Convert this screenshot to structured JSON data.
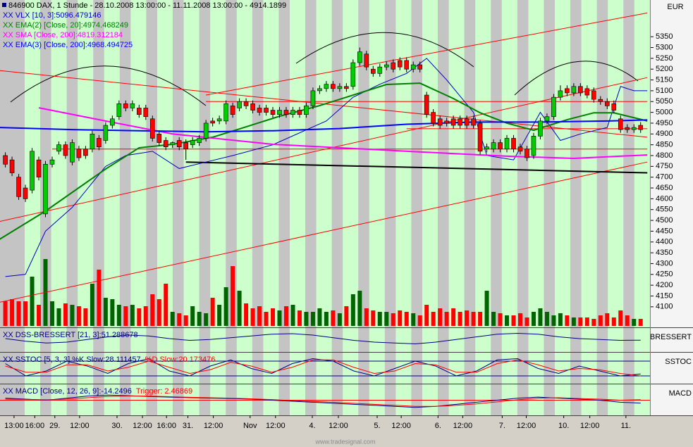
{
  "chart_data": {
    "type": "candlestick",
    "title": "846900 DAX, 1 Stunde - 28.10.2008 13:00:00 - 11.11.2008 13:00:00 - 4914.1899",
    "currency": "EUR",
    "footer": "www.tradesignal.com",
    "xlim": [
      -0.8,
      96.4
    ],
    "ylim": [
      4005,
      5520
    ],
    "yticks": [
      4100,
      4150,
      4200,
      4250,
      4300,
      4350,
      4400,
      4450,
      4500,
      4550,
      4600,
      4650,
      4700,
      4750,
      4800,
      4850,
      4900,
      4950,
      5000,
      5050,
      5100,
      5150,
      5200,
      5250,
      5300,
      5350
    ],
    "xticks": [
      {
        "value": 1.3,
        "label": "13:00"
      },
      {
        "value": 4.4,
        "label": "16:00"
      },
      {
        "value": 7.4,
        "label": "29."
      },
      {
        "value": 11.1,
        "label": "12:00"
      },
      {
        "value": 16.7,
        "label": "30."
      },
      {
        "value": 20.5,
        "label": "12:00"
      },
      {
        "value": 24.1,
        "label": "16:00"
      },
      {
        "value": 27.3,
        "label": "31."
      },
      {
        "value": 31.1,
        "label": "12:00"
      },
      {
        "value": 36.6,
        "label": "Nov"
      },
      {
        "value": 40.4,
        "label": "12:00"
      },
      {
        "value": 45.9,
        "label": "4."
      },
      {
        "value": 49.8,
        "label": "12:00"
      },
      {
        "value": 55.6,
        "label": "5."
      },
      {
        "value": 59.2,
        "label": "12:00"
      },
      {
        "value": 64.7,
        "label": "6."
      },
      {
        "value": 68.4,
        "label": "12:00"
      },
      {
        "value": 74.3,
        "label": "7."
      },
      {
        "value": 77.9,
        "label": "12:00"
      },
      {
        "value": 83.5,
        "label": "10."
      },
      {
        "value": 87.4,
        "label": "12:00"
      },
      {
        "value": 92.8,
        "label": "11."
      }
    ],
    "up_color": "#00cc00",
    "down_color": "#ff0000",
    "open": [
      4800,
      4780,
      4700,
      4650,
      4640,
      4780,
      4530,
      4760,
      4820,
      4850,
      4770,
      4830,
      4830,
      4830,
      4880,
      4870,
      4940,
      4980,
      5040,
      5020,
      5020,
      5020,
      4970,
      4900,
      4870,
      4850,
      4870,
      4860,
      4850,
      4860,
      4880,
      4960,
      4960,
      4960,
      5030,
      5020,
      5050,
      5040,
      5020,
      5020,
      5010,
      4990,
      5010,
      4990,
      5010,
      4990,
      5030,
      5100,
      5110,
      5130,
      5110,
      5120,
      5120,
      5230,
      5270,
      5200,
      5180,
      5210,
      5230,
      5240,
      5240,
      5200,
      5220,
      5080,
      5000,
      4970,
      4960,
      4970,
      4970,
      4970,
      4970,
      4950,
      4830,
      4830,
      4860,
      4830,
      4880,
      4840,
      4830,
      4800,
      4890,
      4960,
      4980,
      5070,
      5110,
      5090,
      5120,
      5110,
      5100,
      5060,
      5050,
      5040,
      4970,
      4930,
      4920,
      4940
    ],
    "close": [
      4760,
      4720,
      4610,
      4600,
      4820,
      4700,
      4760,
      4780,
      4850,
      4800,
      4860,
      4790,
      4800,
      4900,
      4840,
      4940,
      4970,
      5040,
      5020,
      5040,
      4990,
      4980,
      4880,
      4860,
      4840,
      4860,
      4840,
      4830,
      4870,
      4880,
      4950,
      4950,
      4970,
      5040,
      4990,
      5050,
      5030,
      5010,
      5000,
      5000,
      4990,
      5010,
      4990,
      5010,
      4990,
      5030,
      5100,
      5110,
      5130,
      5110,
      5120,
      5110,
      5230,
      5280,
      5210,
      5180,
      5210,
      5220,
      5200,
      5210,
      5200,
      5220,
      5200,
      4990,
      4950,
      4940,
      4950,
      4940,
      4940,
      4940,
      4940,
      4820,
      4840,
      4860,
      4830,
      4880,
      4830,
      4820,
      4790,
      4890,
      4960,
      4980,
      5070,
      5100,
      5090,
      5120,
      5090,
      5080,
      5060,
      5050,
      5030,
      5010,
      4920,
      4920,
      4930,
      4920
    ],
    "high": [
      4815,
      4795,
      4715,
      4665,
      4835,
      4795,
      4775,
      4795,
      4865,
      4865,
      4875,
      4845,
      4845,
      4915,
      4895,
      4955,
      4985,
      5055,
      5055,
      5055,
      5035,
      5035,
      4985,
      4915,
      4885,
      4865,
      4885,
      4875,
      4885,
      4895,
      4965,
      4975,
      4985,
      5055,
      5045,
      5065,
      5065,
      5055,
      5035,
      5035,
      5025,
      5025,
      5025,
      5025,
      5025,
      5045,
      5115,
      5125,
      5145,
      5145,
      5135,
      5135,
      5245,
      5300,
      5285,
      5215,
      5225,
      5235,
      5245,
      5255,
      5255,
      5235,
      5235,
      5095,
      5015,
      4985,
      4975,
      4985,
      4985,
      4985,
      4985,
      4965,
      4855,
      4875,
      4875,
      4895,
      4895,
      4855,
      4845,
      4905,
      4975,
      4995,
      5085,
      5125,
      5125,
      5135,
      5135,
      5125,
      5115,
      5075,
      5065,
      5055,
      4985,
      4945,
      4945,
      4955
    ],
    "low": [
      4745,
      4705,
      4595,
      4585,
      4625,
      4685,
      4515,
      4745,
      4805,
      4785,
      4755,
      4775,
      4785,
      4815,
      4825,
      4855,
      4925,
      4965,
      5005,
      5005,
      4975,
      4965,
      4865,
      4845,
      4825,
      4835,
      4825,
      4780,
      4835,
      4845,
      4865,
      4935,
      4945,
      4945,
      4975,
      5005,
      5015,
      4995,
      4985,
      4985,
      4975,
      4975,
      4975,
      4975,
      4975,
      4975,
      5015,
      5085,
      5095,
      5095,
      5095,
      5095,
      5105,
      5215,
      5195,
      5165,
      5165,
      5195,
      5185,
      5195,
      5185,
      5185,
      5185,
      4975,
      4935,
      4925,
      4935,
      4925,
      4925,
      4925,
      4925,
      4805,
      4815,
      4815,
      4815,
      4815,
      4815,
      4805,
      4775,
      4785,
      4875,
      4945,
      4965,
      5055,
      5075,
      5075,
      5075,
      5065,
      5045,
      5035,
      5015,
      4995,
      4905,
      4905,
      4905,
      4905
    ],
    "volume_lim": [
      0,
      100
    ],
    "volume_up_color": "#006400",
    "volume_down_color": "#ff0000",
    "volume": [
      35,
      38,
      35,
      35,
      70,
      30,
      95,
      35,
      25,
      32,
      30,
      28,
      25,
      60,
      80,
      40,
      38,
      30,
      28,
      30,
      25,
      28,
      45,
      38,
      60,
      20,
      18,
      15,
      28,
      20,
      18,
      40,
      30,
      55,
      85,
      50,
      32,
      25,
      28,
      20,
      25,
      22,
      28,
      30,
      22,
      20,
      20,
      25,
      20,
      22,
      18,
      28,
      45,
      50,
      25,
      22,
      20,
      20,
      18,
      22,
      20,
      18,
      15,
      30,
      20,
      25,
      20,
      25,
      20,
      22,
      20,
      20,
      50,
      20,
      18,
      15,
      15,
      18,
      12,
      20,
      25,
      20,
      15,
      18,
      15,
      12,
      12,
      12,
      10,
      15,
      18,
      12,
      22,
      15,
      10,
      10
    ],
    "series": [
      {
        "name": "XX VLX [10, 3]:5096.479146",
        "color": "#0000c0",
        "width": 1,
        "x": [
          0,
          3,
          6,
          10,
          15,
          18,
          22,
          26,
          30,
          34,
          40,
          48,
          52,
          56,
          60,
          63,
          66,
          70,
          72,
          76,
          80,
          83,
          86,
          90,
          92,
          94,
          96
        ],
        "values": [
          4240,
          4250,
          4450,
          4560,
          4750,
          4800,
          4820,
          4740,
          4770,
          4800,
          4850,
          4960,
          5070,
          5130,
          5180,
          5250,
          5150,
          5000,
          4800,
          4780,
          5000,
          4870,
          4900,
          4930,
          5120,
          5100,
          5100
        ]
      },
      {
        "name": "XX EMA(2) [Close, 20]:4974.468249",
        "color": "#008000",
        "width": 2,
        "x": [
          -1,
          6,
          15,
          20,
          25,
          31,
          36,
          41,
          47,
          52,
          57,
          62,
          67,
          71,
          75,
          79,
          84,
          88,
          91,
          96
        ],
        "values": [
          4410,
          4543,
          4738,
          4836,
          4852,
          4885,
          4933,
          4982,
          5031,
          5080,
          5129,
          5135,
          5064,
          4998,
          4950,
          4917,
          4966,
          4998,
          4998,
          4960
        ]
      },
      {
        "name": "XX SMA [Close, 200]:4819.312184",
        "color": "#ff00ff",
        "width": 2,
        "x": [
          5,
          15,
          25,
          40,
          60,
          75,
          85,
          96
        ],
        "values": [
          5021,
          4960,
          4900,
          4852,
          4820,
          4797,
          4787,
          4803
        ]
      },
      {
        "name": "XX EMA(3) [Close, 200]:4968.494725",
        "color": "#0000ff",
        "width": 2,
        "x": [
          -1,
          10,
          20,
          30,
          40,
          50,
          60,
          70,
          80,
          90,
          96
        ],
        "values": [
          4930,
          4920,
          4915,
          4910,
          4915,
          4925,
          4945,
          4955,
          4955,
          4960,
          4965
        ]
      }
    ],
    "trendlines": [
      {
        "color": "#ff0000",
        "x": [
          30,
          96
        ],
        "y": [
          5080,
          5460
        ]
      },
      {
        "color": "#ff0000",
        "x": [
          -1,
          96
        ],
        "y": [
          4494,
          5161
        ]
      },
      {
        "color": "#ff0000",
        "x": [
          -1,
          96
        ],
        "y": [
          4120,
          4770
        ]
      },
      {
        "color": "#ff0000",
        "x": [
          -1,
          96
        ],
        "y": [
          5194,
          4885
        ]
      },
      {
        "color": "#ff0000",
        "x": [
          7,
          96
        ],
        "y": [
          4830,
          4830
        ]
      },
      {
        "color": "#ff0000",
        "x": [
          30,
          96
        ],
        "y": [
          5050,
          5050
        ]
      },
      {
        "color": "#ff0000",
        "x": [
          60,
          96
        ],
        "y": [
          4924,
          4924
        ]
      },
      {
        "color": "#000000",
        "x": [
          27,
          96
        ],
        "y": [
          4770,
          4720
        ]
      }
    ],
    "panels": [
      {
        "title": "BRESSERT",
        "ylim": [
          0,
          100
        ],
        "levels": [],
        "series": [
          {
            "name": "XX DSS-BRESSERT [21, 3]:51.288678",
            "color": "#000080",
            "values": [
              60,
              45,
              35,
              40,
              55,
              70,
              80,
              75,
              60,
              50,
              55,
              65,
              75,
              85,
              88,
              80,
              65,
              50,
              40,
              35,
              30,
              40,
              55,
              70,
              85,
              90,
              85,
              70,
              60,
              55,
              50,
              51
            ]
          }
        ]
      },
      {
        "title": "SSTOC",
        "ylim": [
          0,
          100
        ],
        "levels": [
          20,
          80
        ],
        "level_color": "#000080",
        "series": [
          {
            "name": "XX SSTOC [5, 3, 3] %K Slow:28.111457",
            "color": "#000080",
            "values": [
              70,
              20,
              40,
              80,
              60,
              30,
              70,
              90,
              40,
              20,
              60,
              85,
              50,
              30,
              70,
              90,
              80,
              40,
              20,
              50,
              80,
              60,
              20,
              40,
              85,
              90,
              50,
              30,
              60,
              40,
              20,
              28
            ]
          },
          {
            "name": "%D Slow:20.173476",
            "color": "#ff0000",
            "values": [
              60,
              35,
              35,
              65,
              65,
              40,
              55,
              80,
              55,
              30,
              45,
              75,
              60,
              35,
              55,
              85,
              85,
              55,
              30,
              40,
              70,
              65,
              35,
              35,
              70,
              85,
              65,
              40,
              50,
              45,
              30,
              20
            ]
          }
        ]
      },
      {
        "title": "MACD",
        "ylim": [
          -60,
          60
        ],
        "levels": [
          0
        ],
        "level_color": "#ff0000",
        "series": [
          {
            "name": "XX MACD [Close, 12, 26, 9]:-14.2496",
            "color": "#000080",
            "values": [
              10,
              5,
              0,
              10,
              20,
              25,
              22,
              18,
              15,
              12,
              10,
              8,
              5,
              0,
              -5,
              -10,
              -15,
              -20,
              -25,
              -30,
              -35,
              -30,
              -20,
              -10,
              0,
              10,
              15,
              10,
              5,
              0,
              -10,
              -14
            ]
          },
          {
            "name": "Trigger: 2.46869",
            "color": "#ff0000",
            "values": [
              5,
              4,
              2,
              5,
              12,
              18,
              20,
              20,
              17,
              14,
              12,
              10,
              7,
              3,
              -2,
              -6,
              -10,
              -15,
              -20,
              -25,
              -30,
              -30,
              -25,
              -18,
              -8,
              2,
              10,
              12,
              8,
              5,
              0,
              2.5
            ]
          }
        ]
      }
    ]
  }
}
